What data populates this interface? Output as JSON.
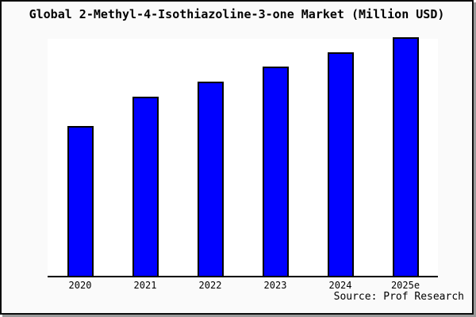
{
  "header": {
    "title": "Global 2-Methyl-4-Isothiazoline-3-one Market (Million USD)"
  },
  "footer": {
    "source_label": "Source: Prof Research"
  },
  "colors": {
    "bar_fill": "#0000FF",
    "bar_border": "#000000",
    "axis_line": "#000000",
    "figure_background": "#FAFAFA",
    "plot_background": "#FFFFFF",
    "frame_border": "#0C0C0C",
    "frame_shadow": "#9A9A9A",
    "text": "#000000"
  },
  "chart_data": {
    "type": "bar",
    "title": "Global 2-Methyl-4-Isothiazoline-3-one Market (Million USD)",
    "categories": [
      "2020",
      "2021",
      "2022",
      "2023",
      "2024",
      "2025e"
    ],
    "values": [
      62.8,
      75.1,
      81.4,
      87.7,
      93.6,
      100
    ],
    "series_note": "Single series; no y-axis scale or gridlines shown, values are relative (2025e bar = 100)",
    "xlabel": "",
    "ylabel": "",
    "ylim": [
      0,
      100
    ],
    "grid": false,
    "legend": false,
    "y_axis_visible": false,
    "source": "Source: Prof Research"
  }
}
